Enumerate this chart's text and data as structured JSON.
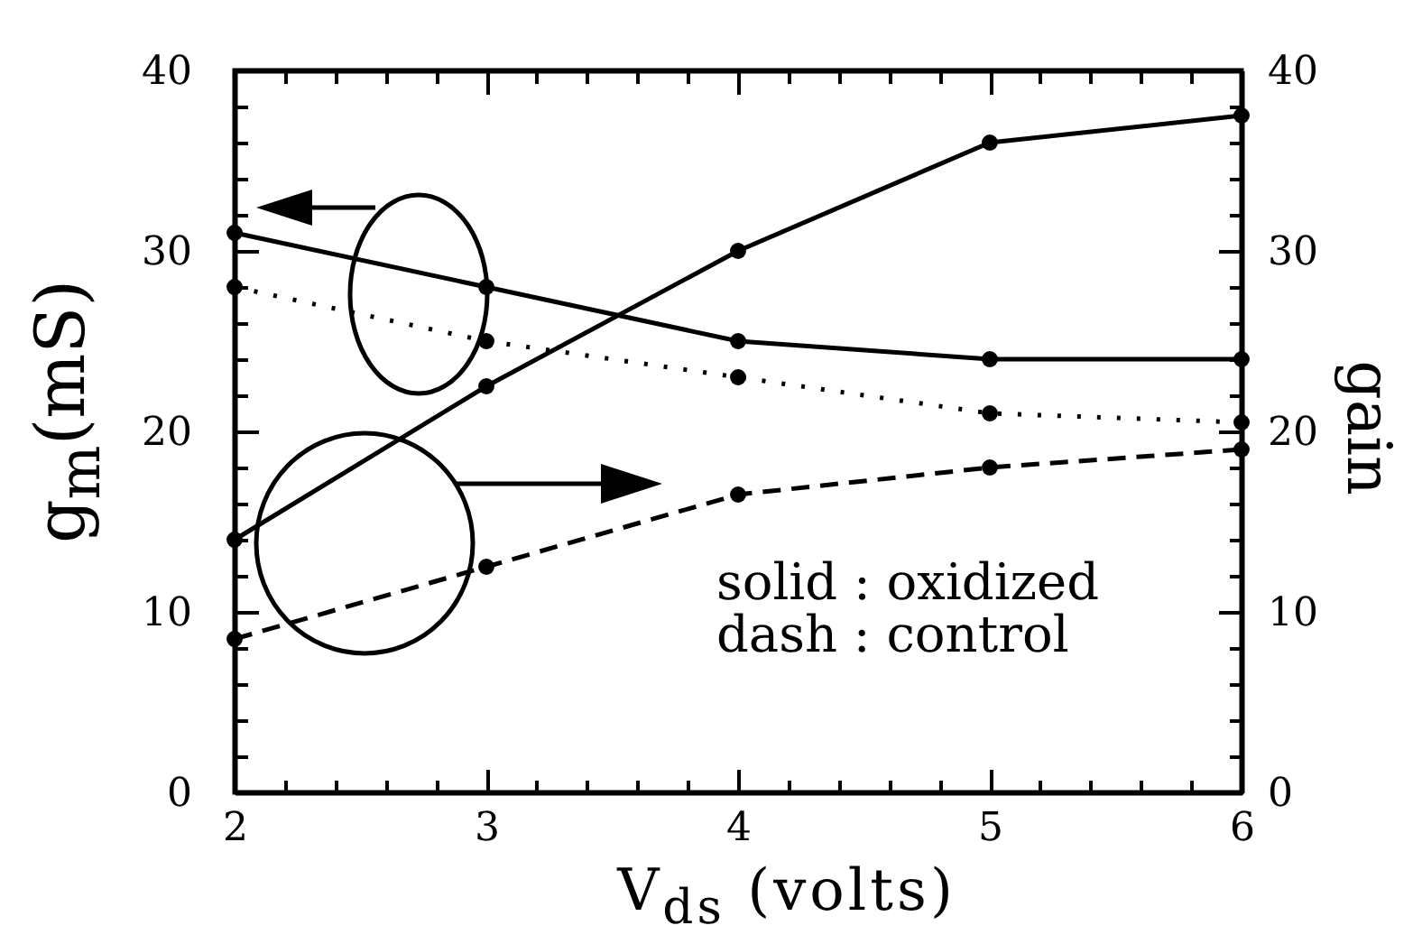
{
  "chart_data": {
    "type": "line",
    "xlabel": "V$_{ds}$ (volts)",
    "ylabel": "g$_{m}$(mS)",
    "y2label": "gain",
    "x": [
      2,
      3,
      4,
      5,
      6
    ],
    "xlim": [
      2,
      6
    ],
    "xticks": [
      2,
      {
        "value": 2.2,
        "label": null
      },
      {
        "value": 2.4,
        "label": null
      },
      {
        "value": 2.6,
        "label": null
      },
      {
        "value": 2.8,
        "label": null
      },
      3,
      {
        "value": 3.2,
        "label": null
      },
      {
        "value": 3.4,
        "label": null
      },
      {
        "value": 3.6,
        "label": null
      },
      {
        "value": 3.8,
        "label": null
      },
      4,
      {
        "value": 4.2,
        "label": null
      },
      {
        "value": 4.4,
        "label": null
      },
      {
        "value": 4.6,
        "label": null
      },
      {
        "value": 4.8,
        "label": null
      },
      5,
      {
        "value": 5.2,
        "label": null
      },
      {
        "value": 5.4,
        "label": null
      },
      {
        "value": 5.6,
        "label": null
      },
      {
        "value": 5.8,
        "label": null
      },
      6
    ],
    "ylim": [
      0,
      40
    ],
    "yticks": [
      0,
      {
        "value": 2,
        "label": null
      },
      {
        "value": 4,
        "label": null
      },
      {
        "value": 6,
        "label": null
      },
      {
        "value": 8,
        "label": null
      },
      10,
      {
        "value": 12,
        "label": null
      },
      {
        "value": 14,
        "label": null
      },
      {
        "value": 16,
        "label": null
      },
      {
        "value": 18,
        "label": null
      },
      20,
      {
        "value": 22,
        "label": null
      },
      {
        "value": 24,
        "label": null
      },
      {
        "value": 26,
        "label": null
      },
      {
        "value": 28,
        "label": null
      },
      30,
      {
        "value": 32,
        "label": null
      },
      {
        "value": 34,
        "label": null
      },
      {
        "value": 36,
        "label": null
      },
      {
        "value": 38,
        "label": null
      },
      40
    ],
    "y2lim": [
      0,
      40
    ],
    "y2ticks": [
      0,
      {
        "value": 2,
        "label": null
      },
      {
        "value": 4,
        "label": null
      },
      {
        "value": 6,
        "label": null
      },
      {
        "value": 8,
        "label": null
      },
      10,
      {
        "value": 12,
        "label": null
      },
      {
        "value": 14,
        "label": null
      },
      {
        "value": 16,
        "label": null
      },
      {
        "value": 18,
        "label": null
      },
      20,
      {
        "value": 22,
        "label": null
      },
      {
        "value": 24,
        "label": null
      },
      {
        "value": 26,
        "label": null
      },
      {
        "value": 28,
        "label": null
      },
      30,
      {
        "value": 32,
        "label": null
      },
      {
        "value": 34,
        "label": null
      },
      {
        "value": 36,
        "label": null
      },
      {
        "value": 38,
        "label": null
      },
      40
    ],
    "marker": "circle",
    "series": [
      {
        "color": "#000000",
        "line_style": "solid",
        "values": [
          31,
          28,
          25,
          24,
          24
        ]
      },
      {
        "color": "#000000",
        "line_style": "dotted",
        "values": [
          28,
          25,
          23,
          21,
          20.5
        ]
      },
      {
        "color": "#000000",
        "line_style": "solid",
        "axis": "y2",
        "values": [
          14,
          22.5,
          30,
          36,
          37.5
        ]
      },
      {
        "color": "#000000",
        "line_style": "dashed",
        "axis": "y2",
        "values": [
          8.5,
          12.5,
          16.5,
          18,
          19
        ]
      }
    ],
    "annotations": [
      "solid : oxidized",
      "dash : control"
    ]
  }
}
